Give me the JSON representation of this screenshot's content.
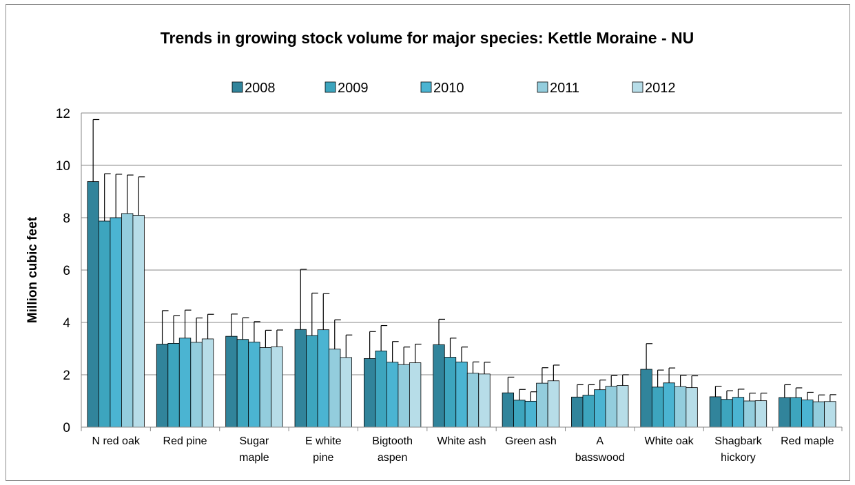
{
  "chart_data": {
    "type": "bar",
    "title": "Trends in growing stock volume for major species: Kettle Moraine - NU",
    "xlabel": "",
    "ylabel": "Million cubic feet",
    "ylim": [
      0,
      12
    ],
    "yticks": [
      "0",
      "2",
      "4",
      "6",
      "8",
      "10",
      "12"
    ],
    "grid": "horizontal",
    "legend_position": "top",
    "categories": [
      [
        "N red oak"
      ],
      [
        "Red pine"
      ],
      [
        "Sugar",
        "maple"
      ],
      [
        "E white",
        "pine"
      ],
      [
        "Bigtooth",
        "aspen"
      ],
      [
        "White ash"
      ],
      [
        "Green ash"
      ],
      [
        "A",
        "basswood"
      ],
      [
        "White oak"
      ],
      [
        "Shagbark",
        "hickory"
      ],
      [
        "Red maple"
      ]
    ],
    "series": [
      {
        "name": "2008",
        "color": "#31849b",
        "values": [
          9.38,
          3.17,
          3.47,
          3.73,
          2.62,
          3.15,
          1.31,
          1.15,
          2.21,
          1.16,
          1.13
        ],
        "error_upper": [
          11.75,
          4.45,
          4.32,
          6.03,
          3.65,
          4.12,
          1.91,
          1.62,
          3.19,
          1.56,
          1.62
        ]
      },
      {
        "name": "2009",
        "color": "#3da5be",
        "values": [
          7.87,
          3.2,
          3.35,
          3.5,
          2.91,
          2.67,
          1.03,
          1.22,
          1.53,
          1.06,
          1.13
        ],
        "error_upper": [
          9.68,
          4.26,
          4.18,
          5.12,
          3.88,
          3.4,
          1.44,
          1.62,
          2.18,
          1.39,
          1.5
        ]
      },
      {
        "name": "2010",
        "color": "#4bb4d2",
        "values": [
          8.0,
          3.4,
          3.25,
          3.72,
          2.48,
          2.49,
          0.99,
          1.43,
          1.69,
          1.14,
          1.04
        ],
        "error_upper": [
          9.66,
          4.47,
          4.03,
          5.1,
          3.27,
          3.06,
          1.35,
          1.8,
          2.26,
          1.45,
          1.33
        ]
      },
      {
        "name": "2011",
        "color": "#93cddd",
        "values": [
          8.16,
          3.24,
          3.04,
          2.98,
          2.39,
          2.06,
          1.68,
          1.56,
          1.55,
          1.0,
          0.97
        ],
        "error_upper": [
          9.63,
          4.17,
          3.7,
          4.1,
          3.06,
          2.49,
          2.27,
          1.97,
          1.98,
          1.3,
          1.23
        ]
      },
      {
        "name": "2012",
        "color": "#b7dde8",
        "values": [
          8.09,
          3.37,
          3.07,
          2.66,
          2.46,
          2.03,
          1.77,
          1.59,
          1.51,
          1.01,
          0.98
        ],
        "error_upper": [
          9.56,
          4.31,
          3.71,
          3.52,
          3.17,
          2.48,
          2.37,
          2.0,
          1.96,
          1.3,
          1.24
        ]
      }
    ]
  }
}
